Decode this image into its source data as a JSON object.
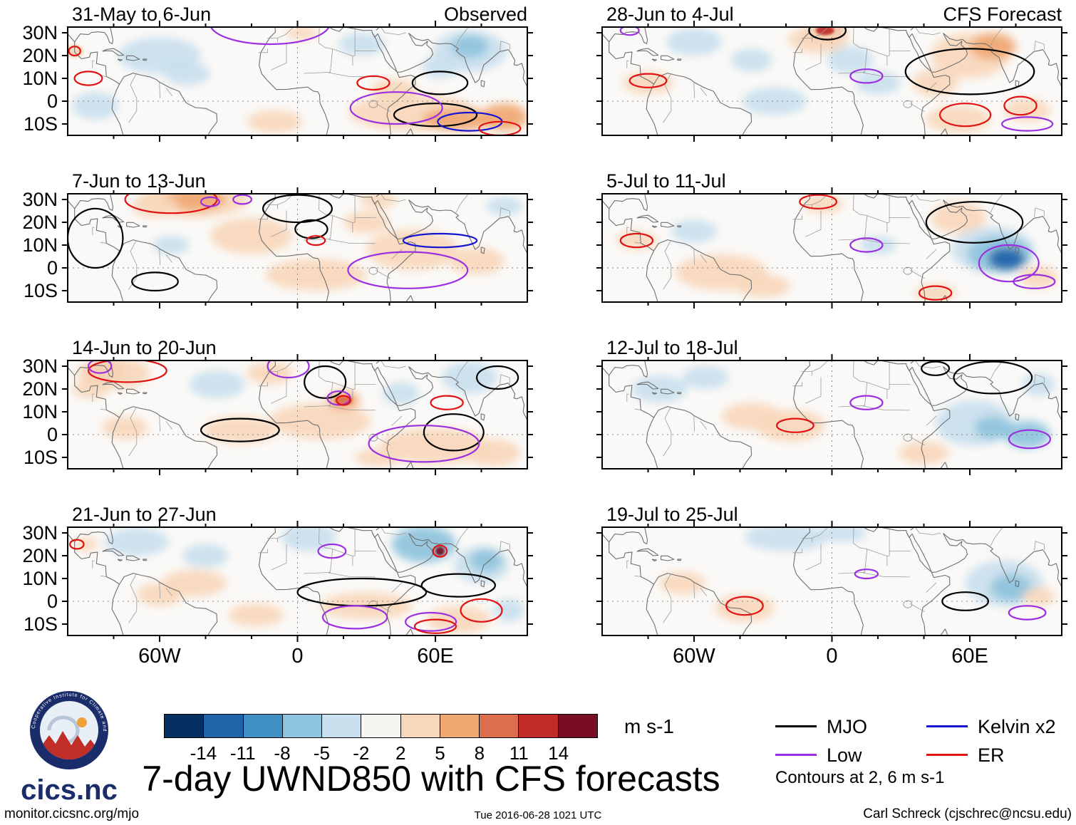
{
  "title": "7-day UWND850 with CFS forecasts",
  "header": {
    "left_column_label": "Observed",
    "right_column_label": "CFS Forecast"
  },
  "axes": {
    "lat_ticks": [
      "30N",
      "20N",
      "10N",
      "0",
      "10S"
    ],
    "lon_ticks": [
      "60W",
      "0",
      "60E"
    ]
  },
  "colorbar": {
    "ticks": [
      "-14",
      "-11",
      "-8",
      "-5",
      "-2",
      "2",
      "5",
      "8",
      "11",
      "14"
    ],
    "colors": [
      "#053061",
      "#1f63a8",
      "#3f8ec4",
      "#8ec4dd",
      "#c9e0ee",
      "#f7f5f2",
      "#f8d8bc",
      "#f0a873",
      "#dd6e4d",
      "#c22b27",
      "#7a0c24"
    ],
    "units_label": "m s-1"
  },
  "legend": {
    "items": [
      {
        "label": "MJO",
        "color": "#000000"
      },
      {
        "label": "Low",
        "color": "#9b30e0"
      },
      {
        "label": "Kelvin x2",
        "color": "#1414d2"
      },
      {
        "label": "ER",
        "color": "#e01212"
      }
    ],
    "note": "Contours at 2, 6 m s-1"
  },
  "logo": {
    "ring_text": "Cooperative Institute for Climate and Satellites",
    "wordmark": "cics.nc"
  },
  "footer": {
    "left": "monitor.cicsnc.org/mjo",
    "center": "Tue 2016-06-28 1021 UTC",
    "right": "Carl Schreck (cjschrec@ncsu.edu)"
  },
  "chart_data": {
    "type": "heatmap",
    "variable": "UWND850 (850-hPa zonal wind) anomaly with wave-filtered contours",
    "units": "m s-1",
    "contour_levels_m_s": [
      2,
      6
    ],
    "shading_levels_m_s": [
      -14,
      -11,
      -8,
      -5,
      -2,
      2,
      5,
      8,
      11,
      14
    ],
    "lon_range_deg": [
      -100,
      100
    ],
    "lat_range_deg": [
      -15,
      32.5
    ],
    "wave_types": [
      "MJO",
      "Low",
      "Kelvin x2",
      "ER"
    ],
    "fill_format": "[lon_deg, lat_deg, rx_deg, ry_deg, anomaly_m_s]",
    "contour_format": "[wave, lon_deg, lat_deg, rx_deg, ry_deg]",
    "panels": [
      {
        "title": "31-May to 6-Jun",
        "source": "Observed",
        "fills": [
          [
            -60,
            20,
            18,
            8,
            -3
          ],
          [
            -48,
            12,
            10,
            5,
            -3
          ],
          [
            -88,
            -2,
            10,
            6,
            -3
          ],
          [
            -97,
            22,
            4,
            3,
            5
          ],
          [
            28,
            25,
            10,
            5,
            -3
          ],
          [
            2,
            30,
            7,
            3,
            3
          ],
          [
            75,
            22,
            16,
            9,
            -4
          ],
          [
            75,
            24,
            8,
            5,
            -6
          ],
          [
            62,
            15,
            8,
            5,
            -3
          ],
          [
            50,
            -5,
            28,
            8,
            4
          ],
          [
            70,
            -8,
            16,
            5,
            6
          ],
          [
            90,
            -7,
            10,
            6,
            6
          ],
          [
            42,
            5,
            10,
            5,
            3
          ],
          [
            -10,
            -9,
            12,
            5,
            3
          ]
        ],
        "contours": [
          [
            "Low",
            -12,
            34,
            26,
            9
          ],
          [
            "ER",
            -97,
            22,
            2.5,
            2
          ],
          [
            "ER",
            -91,
            10,
            6,
            3
          ],
          [
            "MJO",
            62,
            8,
            12,
            5
          ],
          [
            "MJO",
            60,
            -6,
            18,
            5
          ],
          [
            "Kelvin x2",
            75,
            -9,
            14,
            4
          ],
          [
            "Low",
            43,
            -3,
            20,
            7
          ],
          [
            "ER",
            33,
            8,
            7,
            3
          ],
          [
            "ER",
            88,
            -12,
            9,
            3
          ]
        ]
      },
      {
        "title": "7-Jun to 13-Jun",
        "source": "Observed",
        "fills": [
          [
            -45,
            30,
            24,
            8,
            4
          ],
          [
            -45,
            30,
            14,
            5,
            7
          ],
          [
            -62,
            27,
            10,
            5,
            4
          ],
          [
            -20,
            14,
            18,
            8,
            3
          ],
          [
            -55,
            10,
            8,
            4,
            -3
          ],
          [
            8,
            -3,
            22,
            7,
            3
          ],
          [
            30,
            20,
            10,
            5,
            3
          ],
          [
            50,
            8,
            20,
            9,
            3
          ],
          [
            78,
            3,
            12,
            6,
            3
          ],
          [
            90,
            27,
            8,
            4,
            -3
          ],
          [
            35,
            30,
            8,
            4,
            3
          ]
        ],
        "contours": [
          [
            "ER",
            -55,
            30,
            20,
            6
          ],
          [
            "MJO",
            -88,
            13,
            12,
            13
          ],
          [
            "MJO",
            -62,
            -6,
            10,
            4
          ],
          [
            "Low",
            -38,
            29,
            4,
            2
          ],
          [
            "Low",
            -24,
            30,
            4,
            2
          ],
          [
            "MJO",
            0,
            26,
            15,
            6
          ],
          [
            "MJO",
            6,
            17,
            7,
            4
          ],
          [
            "ER",
            8,
            12,
            4,
            2
          ],
          [
            "Kelvin x2",
            62,
            12,
            16,
            3
          ],
          [
            "Low",
            48,
            -1,
            26,
            8
          ]
        ]
      },
      {
        "title": "14-Jun to 20-Jun",
        "source": "Observed",
        "fills": [
          [
            -84,
            28,
            9,
            5,
            9
          ],
          [
            -80,
            27,
            16,
            7,
            5
          ],
          [
            -90,
            20,
            8,
            4,
            3
          ],
          [
            -35,
            22,
            12,
            6,
            -3
          ],
          [
            -12,
            27,
            10,
            5,
            3
          ],
          [
            -25,
            2,
            16,
            6,
            4
          ],
          [
            -75,
            3,
            10,
            5,
            3
          ],
          [
            10,
            6,
            22,
            8,
            3
          ],
          [
            20,
            15,
            7,
            4,
            7
          ],
          [
            20,
            15,
            4,
            2,
            9
          ],
          [
            45,
            18,
            8,
            5,
            -3
          ],
          [
            75,
            25,
            12,
            7,
            -3
          ],
          [
            60,
            -5,
            24,
            8,
            4
          ],
          [
            85,
            -8,
            12,
            6,
            5
          ],
          [
            35,
            -10,
            10,
            4,
            3
          ]
        ],
        "contours": [
          [
            "ER",
            -74,
            28,
            17,
            5
          ],
          [
            "Low",
            -86,
            30,
            5,
            3
          ],
          [
            "Low",
            -4,
            30,
            9,
            5
          ],
          [
            "MJO",
            12,
            23,
            9,
            7
          ],
          [
            "Low",
            18,
            16,
            5,
            3
          ],
          [
            "ER",
            20,
            15,
            3,
            2
          ],
          [
            "MJO",
            -25,
            2,
            17,
            5
          ],
          [
            "MJO",
            68,
            1,
            13,
            8
          ],
          [
            "Low",
            55,
            -4,
            24,
            8
          ],
          [
            "ER",
            65,
            14,
            7,
            3
          ],
          [
            "MJO",
            87,
            25,
            9,
            5
          ]
        ]
      },
      {
        "title": "21-Jun to 27-Jun",
        "source": "Observed",
        "fills": [
          [
            -70,
            26,
            14,
            6,
            -3
          ],
          [
            -92,
            25,
            5,
            3,
            3
          ],
          [
            -40,
            20,
            10,
            5,
            -3
          ],
          [
            5,
            28,
            12,
            6,
            -3
          ],
          [
            55,
            25,
            14,
            8,
            -6
          ],
          [
            80,
            16,
            12,
            8,
            -4
          ],
          [
            82,
            18,
            7,
            5,
            -6
          ],
          [
            -45,
            8,
            14,
            6,
            4
          ],
          [
            -60,
            3,
            10,
            5,
            3
          ],
          [
            -18,
            -6,
            12,
            5,
            3
          ],
          [
            30,
            -2,
            20,
            6,
            3
          ],
          [
            70,
            -8,
            14,
            6,
            4
          ],
          [
            92,
            -4,
            7,
            5,
            -3
          ],
          [
            62,
            22,
            2,
            2,
            15
          ]
        ],
        "contours": [
          [
            "ER",
            -96,
            25,
            3,
            2
          ],
          [
            "MJO",
            28,
            4,
            28,
            6
          ],
          [
            "MJO",
            70,
            7,
            16,
            5
          ],
          [
            "Low",
            15,
            22,
            6,
            3
          ],
          [
            "Low",
            25,
            -7,
            14,
            5
          ],
          [
            "Low",
            58,
            -9,
            11,
            4
          ],
          [
            "ER",
            60,
            -11,
            9,
            3
          ],
          [
            "ER",
            80,
            -4,
            9,
            5
          ],
          [
            "ER",
            62,
            22,
            3,
            2.5
          ]
        ]
      },
      {
        "title": "28-Jun to 4-Jul",
        "source": "CFS Forecast",
        "fills": [
          [
            -3,
            30,
            9,
            4,
            9
          ],
          [
            -3,
            31,
            4,
            2,
            12
          ],
          [
            -6,
            27,
            13,
            6,
            5
          ],
          [
            -60,
            26,
            12,
            6,
            -3
          ],
          [
            -35,
            18,
            9,
            5,
            -3
          ],
          [
            -80,
            8,
            11,
            5,
            3
          ],
          [
            20,
            8,
            10,
            5,
            -3
          ],
          [
            8,
            18,
            10,
            6,
            -3
          ],
          [
            60,
            20,
            17,
            10,
            4
          ],
          [
            70,
            24,
            10,
            6,
            6
          ],
          [
            45,
            8,
            10,
            6,
            3
          ],
          [
            55,
            -8,
            14,
            6,
            3
          ],
          [
            85,
            -4,
            10,
            5,
            3
          ],
          [
            -25,
            0,
            14,
            6,
            -3
          ]
        ],
        "contours": [
          [
            "MJO",
            -2,
            31,
            8,
            4
          ],
          [
            "Low",
            -88,
            31,
            4,
            2
          ],
          [
            "ER",
            -80,
            9,
            8,
            3
          ],
          [
            "Low",
            15,
            11,
            7,
            3
          ],
          [
            "MJO",
            60,
            13,
            28,
            10
          ],
          [
            "ER",
            58,
            -6,
            11,
            5
          ],
          [
            "ER",
            82,
            -2,
            7,
            4
          ],
          [
            "Low",
            85,
            -10,
            11,
            3
          ]
        ]
      },
      {
        "title": "5-Jul to 11-Jul",
        "source": "CFS Forecast",
        "fills": [
          [
            -4,
            28,
            9,
            4,
            4
          ],
          [
            -85,
            12,
            9,
            4,
            3
          ],
          [
            -60,
            16,
            10,
            5,
            -3
          ],
          [
            -48,
            -2,
            20,
            8,
            3
          ],
          [
            -30,
            -8,
            12,
            5,
            3
          ],
          [
            55,
            22,
            12,
            7,
            3
          ],
          [
            70,
            8,
            18,
            10,
            -4
          ],
          [
            73,
            6,
            14,
            8,
            -6
          ],
          [
            76,
            4,
            8,
            5,
            -12
          ],
          [
            45,
            -11,
            9,
            4,
            3
          ],
          [
            90,
            -4,
            8,
            5,
            3
          ],
          [
            20,
            10,
            8,
            4,
            -3
          ]
        ],
        "contours": [
          [
            "ER",
            -6,
            29,
            8,
            3
          ],
          [
            "ER",
            -85,
            12,
            7,
            3
          ],
          [
            "Low",
            15,
            10,
            7,
            3
          ],
          [
            "MJO",
            62,
            20,
            21,
            9
          ],
          [
            "Low",
            77,
            2,
            13,
            8
          ],
          [
            "ER",
            45,
            -11,
            7,
            3
          ],
          [
            "Low",
            88,
            -6,
            9,
            3
          ]
        ]
      },
      {
        "title": "12-Jul to 18-Jul",
        "source": "CFS Forecast",
        "fills": [
          [
            -18,
            4,
            15,
            7,
            4
          ],
          [
            -35,
            8,
            13,
            6,
            3
          ],
          [
            -75,
            20,
            12,
            6,
            -3
          ],
          [
            -55,
            25,
            10,
            5,
            -3
          ],
          [
            62,
            5,
            17,
            10,
            -4
          ],
          [
            70,
            3,
            8,
            5,
            -6
          ],
          [
            85,
            0,
            10,
            6,
            -6
          ],
          [
            40,
            -8,
            11,
            5,
            3
          ],
          [
            90,
            22,
            7,
            5,
            -3
          ]
        ],
        "contours": [
          [
            "ER",
            -16,
            4,
            8,
            3
          ],
          [
            "Low",
            15,
            14,
            7,
            3
          ],
          [
            "MJO",
            70,
            25,
            17,
            7
          ],
          [
            "MJO",
            45,
            29,
            6,
            3
          ],
          [
            "Low",
            86,
            -2,
            9,
            4
          ]
        ]
      },
      {
        "title": "19-Jul to 25-Jul",
        "source": "CFS Forecast",
        "fills": [
          [
            -20,
            28,
            18,
            6,
            -3
          ],
          [
            5,
            30,
            10,
            4,
            -3
          ],
          [
            -38,
            -3,
            13,
            6,
            3
          ],
          [
            -65,
            8,
            10,
            5,
            3
          ],
          [
            75,
            8,
            17,
            10,
            -4
          ],
          [
            78,
            6,
            9,
            6,
            -6
          ],
          [
            90,
            2,
            7,
            4,
            3
          ]
        ],
        "contours": [
          [
            "ER",
            -38,
            -2,
            8,
            4
          ],
          [
            "Low",
            15,
            12,
            5,
            2
          ],
          [
            "MJO",
            58,
            0,
            10,
            4
          ],
          [
            "Low",
            85,
            -5,
            8,
            3
          ]
        ]
      }
    ]
  }
}
